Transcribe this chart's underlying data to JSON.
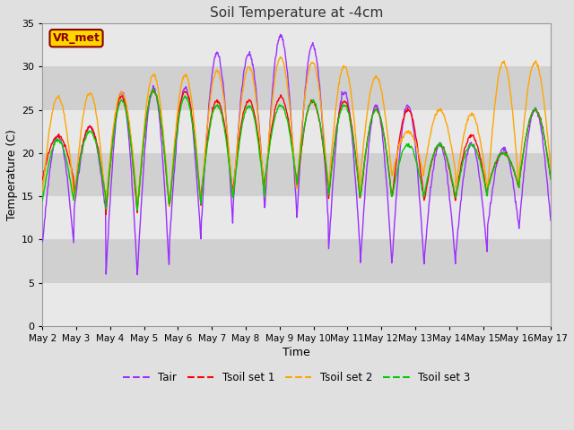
{
  "title": "Soil Temperature at -4cm",
  "xlabel": "Time",
  "ylabel": "Temperature (C)",
  "ylim": [
    0,
    35
  ],
  "yticks": [
    0,
    5,
    10,
    15,
    20,
    25,
    30,
    35
  ],
  "x_tick_labels": [
    "May 2",
    "May 3",
    "May 4",
    "May 5",
    "May 6",
    "May 7",
    "May 8",
    "May 9",
    "May 10",
    "May 11",
    "May 12",
    "May 13",
    "May 14",
    "May 15",
    "May 16",
    "May 17"
  ],
  "annotation_text": "VR_met",
  "colors": {
    "Tair": "#9B30FF",
    "Tsoil1": "#FF0000",
    "Tsoil2": "#FFA500",
    "Tsoil3": "#00CC00"
  },
  "legend_labels": [
    "Tair",
    "Tsoil set 1",
    "Tsoil set 2",
    "Tsoil set 3"
  ],
  "fig_bg_color": "#E0E0E0",
  "plot_bg_color": "#D8D8D8",
  "band_color_light": "#E8E8E8",
  "band_color_dark": "#D0D0D0",
  "n_points": 960
}
